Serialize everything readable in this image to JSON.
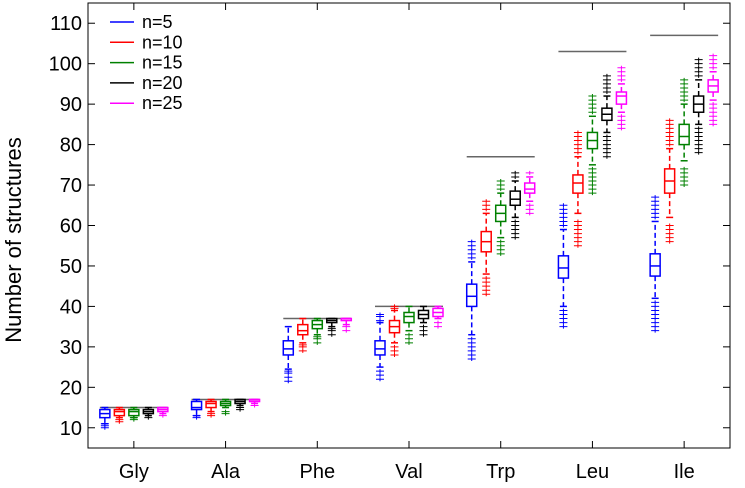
{
  "chart_data": {
    "type": "box",
    "title": "",
    "xlabel": "",
    "ylabel": "Number of structures",
    "ylim": [
      5,
      115
    ],
    "yticks": [
      10,
      20,
      30,
      40,
      50,
      60,
      70,
      80,
      90,
      100,
      110
    ],
    "categories": [
      "Gly",
      "Ala",
      "Phe",
      "Val",
      "Trp",
      "Leu",
      "Ile"
    ],
    "reference_lines": [
      15,
      17,
      37,
      40,
      77,
      103,
      107
    ],
    "legend_position": "top-left",
    "grid": false,
    "series": [
      {
        "name": "n=5",
        "color": "#0000ff",
        "boxes": [
          {
            "lo": 11,
            "q1": 12.5,
            "med": 13.5,
            "q3": 14.5,
            "hi": 15,
            "outliers": [
              10,
              10.5,
              11
            ]
          },
          {
            "lo": 13,
            "q1": 14.5,
            "med": 15,
            "q3": 16.5,
            "hi": 17,
            "outliers": [
              12.5,
              13
            ]
          },
          {
            "lo": 24.5,
            "q1": 28,
            "med": 29.5,
            "q3": 31.5,
            "hi": 35,
            "outliers": [
              21.5,
              22.5,
              23.5,
              24
            ]
          },
          {
            "lo": 25,
            "q1": 28,
            "med": 29.5,
            "q3": 31.5,
            "hi": 36,
            "outliers": [
              22,
              23,
              24,
              36.5,
              37.5,
              38
            ]
          },
          {
            "lo": 33,
            "q1": 40,
            "med": 42.5,
            "q3": 45.5,
            "hi": 51,
            "outliers": [
              27,
              28,
              29,
              30,
              31,
              32,
              52,
              53,
              54,
              55,
              56
            ]
          },
          {
            "lo": 40,
            "q1": 47,
            "med": 49.5,
            "q3": 52.5,
            "hi": 59,
            "outliers": [
              35,
              36,
              37,
              38,
              39,
              60,
              61,
              62,
              63,
              64,
              65
            ]
          },
          {
            "lo": 42,
            "q1": 47.5,
            "med": 50,
            "q3": 53,
            "hi": 61,
            "outliers": [
              34,
              35,
              36,
              37,
              38,
              39,
              40,
              41,
              62,
              63,
              64,
              65,
              66,
              67
            ]
          }
        ]
      },
      {
        "name": "n=10",
        "color": "#ff0000",
        "boxes": [
          {
            "lo": 12.5,
            "q1": 13,
            "med": 14,
            "q3": 14.5,
            "hi": 15,
            "outliers": [
              11.5,
              12
            ]
          },
          {
            "lo": 14,
            "q1": 15,
            "med": 16,
            "q3": 16.5,
            "hi": 17,
            "outliers": [
              13,
              13.5
            ]
          },
          {
            "lo": 31,
            "q1": 33,
            "med": 34,
            "q3": 35.5,
            "hi": 37,
            "outliers": [
              29,
              30,
              30.5
            ]
          },
          {
            "lo": 31,
            "q1": 33.5,
            "med": 35,
            "q3": 36.5,
            "hi": 39,
            "outliers": [
              28,
              29,
              30,
              39.5,
              40
            ]
          },
          {
            "lo": 48,
            "q1": 53.5,
            "med": 56,
            "q3": 58.5,
            "hi": 63,
            "outliers": [
              43,
              44,
              45,
              46,
              47,
              64,
              65,
              66
            ]
          },
          {
            "lo": 63,
            "q1": 68,
            "med": 70.5,
            "q3": 72.5,
            "hi": 77,
            "outliers": [
              55,
              56,
              57,
              58,
              59,
              60,
              61,
              78,
              79,
              80,
              81,
              82,
              83
            ]
          },
          {
            "lo": 62,
            "q1": 68,
            "med": 71,
            "q3": 74,
            "hi": 79,
            "outliers": [
              56,
              57,
              58,
              59,
              60,
              80,
              81,
              82,
              83,
              84,
              85,
              86
            ]
          }
        ]
      },
      {
        "name": "n=15",
        "color": "#008000",
        "boxes": [
          {
            "lo": 12.5,
            "q1": 13,
            "med": 14,
            "q3": 14.5,
            "hi": 15,
            "outliers": [
              12,
              12.5
            ]
          },
          {
            "lo": 15,
            "q1": 15.5,
            "med": 16,
            "q3": 16.5,
            "hi": 17,
            "outliers": [
              13.5,
              14
            ]
          },
          {
            "lo": 33,
            "q1": 34.5,
            "med": 35.5,
            "q3": 36.5,
            "hi": 37,
            "outliers": [
              31,
              32,
              32.5
            ]
          },
          {
            "lo": 34,
            "q1": 36,
            "med": 37.5,
            "q3": 38.5,
            "hi": 40,
            "outliers": [
              31,
              32,
              33
            ]
          },
          {
            "lo": 57,
            "q1": 61,
            "med": 63,
            "q3": 65,
            "hi": 68,
            "outliers": [
              53,
              54,
              55,
              56,
              69,
              70,
              71
            ]
          },
          {
            "lo": 75,
            "q1": 79,
            "med": 81,
            "q3": 83,
            "hi": 87,
            "outliers": [
              68,
              69,
              70,
              71,
              72,
              73,
              74,
              88,
              89,
              90,
              91,
              92
            ]
          },
          {
            "lo": 76,
            "q1": 80,
            "med": 82,
            "q3": 85,
            "hi": 90,
            "outliers": [
              70,
              71,
              72,
              73,
              74,
              91,
              92,
              93,
              94,
              95,
              96
            ]
          }
        ]
      },
      {
        "name": "n=20",
        "color": "#000000",
        "boxes": [
          {
            "lo": 13,
            "q1": 13.5,
            "med": 14,
            "q3": 14.5,
            "hi": 15,
            "outliers": [
              12.5
            ]
          },
          {
            "lo": 15.5,
            "q1": 16,
            "med": 16.5,
            "q3": 17,
            "hi": 17,
            "outliers": [
              14.5,
              15
            ]
          },
          {
            "lo": 35,
            "q1": 36,
            "med": 36.5,
            "q3": 37,
            "hi": 37,
            "outliers": [
              33,
              34,
              34.5
            ]
          },
          {
            "lo": 36,
            "q1": 37,
            "med": 38,
            "q3": 39,
            "hi": 40,
            "outliers": [
              33,
              34,
              35
            ]
          },
          {
            "lo": 62,
            "q1": 65,
            "med": 66.5,
            "q3": 68.5,
            "hi": 71,
            "outliers": [
              57,
              58,
              59,
              60,
              61,
              72,
              73
            ]
          },
          {
            "lo": 83,
            "q1": 86,
            "med": 87.5,
            "q3": 89,
            "hi": 92,
            "outliers": [
              77,
              78,
              79,
              80,
              81,
              82,
              93,
              94,
              95,
              96,
              97
            ]
          },
          {
            "lo": 85,
            "q1": 88,
            "med": 90,
            "q3": 92,
            "hi": 96,
            "outliers": [
              78,
              79,
              80,
              81,
              82,
              83,
              84,
              97,
              98,
              99,
              100,
              101
            ]
          }
        ]
      },
      {
        "name": "n=25",
        "color": "#ff00ff",
        "boxes": [
          {
            "lo": 13.5,
            "q1": 14,
            "med": 14.5,
            "q3": 15,
            "hi": 15,
            "outliers": [
              13
            ]
          },
          {
            "lo": 16,
            "q1": 16.5,
            "med": 16.5,
            "q3": 17,
            "hi": 17,
            "outliers": [
              15.5
            ]
          },
          {
            "lo": 35.5,
            "q1": 36.5,
            "med": 37,
            "q3": 37,
            "hi": 37,
            "outliers": [
              34,
              35
            ]
          },
          {
            "lo": 37,
            "q1": 37.5,
            "med": 38.5,
            "q3": 39.5,
            "hi": 40,
            "outliers": [
              35,
              36
            ]
          },
          {
            "lo": 66,
            "q1": 68,
            "med": 69,
            "q3": 70.5,
            "hi": 72,
            "outliers": [
              63,
              64,
              65,
              73
            ]
          },
          {
            "lo": 88,
            "q1": 90,
            "med": 92,
            "q3": 93,
            "hi": 95,
            "outliers": [
              84,
              85,
              86,
              87,
              96,
              97,
              98,
              99
            ]
          },
          {
            "lo": 91,
            "q1": 93,
            "med": 94.5,
            "q3": 96,
            "hi": 98,
            "outliers": [
              85,
              86,
              87,
              88,
              89,
              90,
              99,
              100,
              101,
              102
            ]
          }
        ]
      }
    ]
  }
}
